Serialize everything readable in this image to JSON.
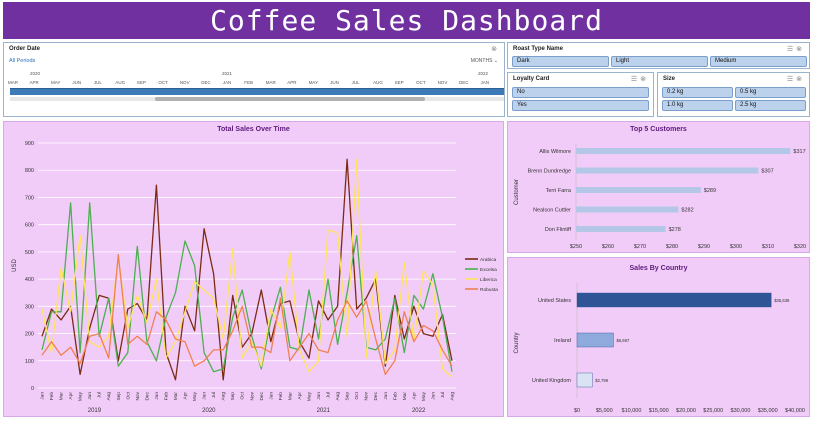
{
  "title": "Coffee Sales Dashboard",
  "slicers": {
    "order_date": {
      "header": "Order Date",
      "all_periods": "All Periods",
      "unit": "MONTHS ⌄",
      "years": [
        "2020",
        "2021",
        "2022"
      ],
      "months": [
        "MAR",
        "APR",
        "MAY",
        "JUN",
        "JUL",
        "AUG",
        "SEP",
        "OCT",
        "NOV",
        "DEC",
        "JAN",
        "FEB",
        "MAR",
        "APR",
        "MAY",
        "JUN",
        "JUL",
        "AUG",
        "SEP",
        "OCT",
        "NOV",
        "DEC",
        "JAN"
      ]
    },
    "roast_type": {
      "header": "Roast Type Name",
      "options": [
        "Dark",
        "Light",
        "Medium"
      ]
    },
    "loyalty": {
      "header": "Loyalty Card",
      "options": [
        "No",
        "Yes"
      ]
    },
    "size": {
      "header": "Size",
      "options": [
        "0.2 kg",
        "0.5 kg",
        "1.0 kg",
        "2.5 kg"
      ]
    }
  },
  "icons": {
    "multi_select": "multi-select-icon",
    "clear_filter": "clear-filter-icon"
  },
  "charts": {
    "total_sales": {
      "title": "Total Sales Over Time",
      "ylabel": "USD",
      "yticks": [
        "0",
        "100",
        "200",
        "300",
        "400",
        "500",
        "600",
        "700",
        "800",
        "900"
      ],
      "month_labels": [
        "Jan",
        "Feb",
        "Mar",
        "Apr",
        "May",
        "Jun",
        "Jul",
        "Aug",
        "Sep",
        "Oct",
        "Nov",
        "Dec",
        "Jan",
        "Feb",
        "Mar",
        "Apr",
        "May",
        "Jun",
        "Jul",
        "Aug",
        "Sep",
        "Oct",
        "Nov",
        "Dec",
        "Jan",
        "Feb",
        "Mar",
        "Apr",
        "May",
        "Jun",
        "Jul",
        "Aug",
        "Sep",
        "Oct",
        "Nov",
        "Dec",
        "Jan",
        "Feb",
        "Mar",
        "Apr",
        "May",
        "Jun",
        "Jul",
        "Aug"
      ],
      "year_labels": [
        "2019",
        "2020",
        "2021",
        "2022"
      ],
      "legend": [
        "Arabica",
        "Excelsa",
        "Liberica",
        "Robusta"
      ]
    },
    "top_customers": {
      "title": "Top 5 Customers",
      "ylabel": "Customer",
      "xticks": [
        "$250",
        "$260",
        "$270",
        "$280",
        "$290",
        "$300",
        "$310",
        "$320"
      ]
    },
    "sales_by_country": {
      "title": "Sales By Country",
      "ylabel": "Country",
      "xticks": [
        "$0",
        "$5,000",
        "$10,000",
        "$15,000",
        "$20,000",
        "$25,000",
        "$30,000",
        "$35,000",
        "$40,000"
      ]
    }
  },
  "chart_data": [
    {
      "type": "line",
      "title": "Total Sales Over Time",
      "ylabel": "USD",
      "ylim": [
        0,
        900
      ],
      "x": [
        "2019-01",
        "2019-02",
        "2019-03",
        "2019-04",
        "2019-05",
        "2019-06",
        "2019-07",
        "2019-08",
        "2019-09",
        "2019-10",
        "2019-11",
        "2019-12",
        "2020-01",
        "2020-02",
        "2020-03",
        "2020-04",
        "2020-05",
        "2020-06",
        "2020-07",
        "2020-08",
        "2020-09",
        "2020-10",
        "2020-11",
        "2020-12",
        "2021-01",
        "2021-02",
        "2021-03",
        "2021-04",
        "2021-05",
        "2021-06",
        "2021-07",
        "2021-08",
        "2021-09",
        "2021-10",
        "2021-11",
        "2021-12",
        "2022-01",
        "2022-02",
        "2022-03",
        "2022-04",
        "2022-05",
        "2022-06",
        "2022-07",
        "2022-08"
      ],
      "series": [
        {
          "name": "Arabica",
          "color": "#7b2b12",
          "values": [
            190,
            290,
            250,
            300,
            50,
            220,
            340,
            330,
            100,
            290,
            310,
            250,
            745,
            130,
            30,
            300,
            210,
            585,
            420,
            30,
            340,
            150,
            200,
            360,
            170,
            310,
            320,
            170,
            110,
            320,
            250,
            300,
            840,
            290,
            330,
            400,
            80,
            340,
            180,
            300,
            200,
            190,
            270,
            100
          ]
        },
        {
          "name": "Excelsa",
          "color": "#4caf50",
          "values": [
            140,
            280,
            280,
            680,
            130,
            680,
            190,
            330,
            80,
            130,
            520,
            170,
            100,
            260,
            350,
            540,
            450,
            130,
            60,
            70,
            260,
            360,
            190,
            70,
            250,
            370,
            150,
            140,
            360,
            180,
            400,
            160,
            350,
            560,
            150,
            140,
            180,
            330,
            130,
            340,
            290,
            420,
            260,
            60
          ]
        },
        {
          "name": "Liberica",
          "color": "#ffe45c",
          "values": [
            290,
            130,
            440,
            280,
            560,
            170,
            150,
            190,
            480,
            220,
            340,
            240,
            400,
            110,
            170,
            280,
            390,
            360,
            330,
            180,
            510,
            110,
            170,
            80,
            290,
            220,
            500,
            140,
            60,
            100,
            580,
            570,
            190,
            840,
            110,
            430,
            90,
            140,
            460,
            170,
            430,
            380,
            70,
            40
          ]
        },
        {
          "name": "Robusta",
          "color": "#f08050",
          "values": [
            120,
            170,
            120,
            150,
            90,
            190,
            200,
            110,
            490,
            160,
            190,
            160,
            280,
            250,
            180,
            170,
            80,
            100,
            140,
            140,
            210,
            300,
            150,
            150,
            130,
            330,
            100,
            150,
            200,
            140,
            130,
            250,
            320,
            260,
            320,
            180,
            50,
            100,
            280,
            170,
            230,
            210,
            140,
            80
          ]
        }
      ]
    },
    {
      "type": "bar",
      "orientation": "horizontal",
      "title": "Top 5 Customers",
      "ylabel": "Customer",
      "categories": [
        "Allis Wilmore",
        "Brenn Dundredge",
        "Terri Farra",
        "Nealson Cuttler",
        "Don Flintiff"
      ],
      "values": [
        317,
        307,
        289,
        282,
        278
      ],
      "labels": [
        "$317",
        "$307",
        "$289",
        "$282",
        "$278"
      ],
      "xlim": [
        250,
        320
      ]
    },
    {
      "type": "bar",
      "orientation": "horizontal",
      "title": "Sales By Country",
      "ylabel": "Country",
      "categories": [
        "United States",
        "Ireland",
        "United Kingdom"
      ],
      "values": [
        35639,
        6697,
        2799
      ],
      "labels": [
        "$35,639",
        "$6,697",
        "$2,799"
      ],
      "colors": [
        "#2f5597",
        "#8faadc",
        "#dae3f3"
      ],
      "xlim": [
        0,
        40000
      ]
    }
  ]
}
